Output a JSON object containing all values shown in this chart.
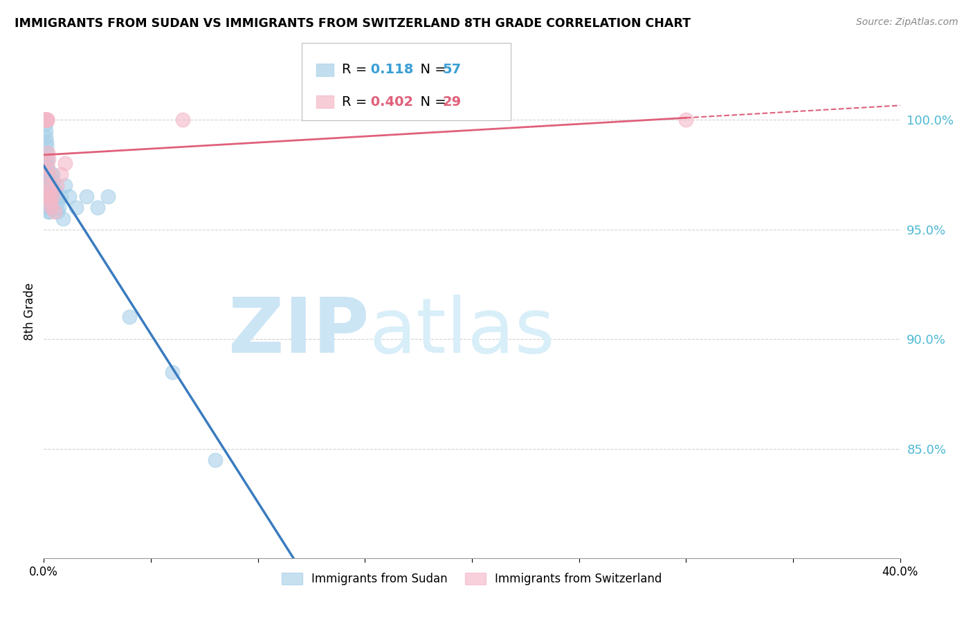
{
  "title": "IMMIGRANTS FROM SUDAN VS IMMIGRANTS FROM SWITZERLAND 8TH GRADE CORRELATION CHART",
  "source": "Source: ZipAtlas.com",
  "ylabel": "8th Grade",
  "x_range": [
    0.0,
    40.0
  ],
  "y_range": [
    80.0,
    102.5
  ],
  "sudan_R": 0.118,
  "sudan_N": 57,
  "swiss_R": 0.402,
  "swiss_N": 29,
  "sudan_color": "#a8d0e8",
  "swiss_color": "#f4b8c8",
  "sudan_line_color": "#3a7bbf",
  "swiss_line_color": "#e0607a",
  "sudan_points_x": [
    0.05,
    0.06,
    0.07,
    0.08,
    0.09,
    0.1,
    0.1,
    0.12,
    0.12,
    0.13,
    0.14,
    0.15,
    0.15,
    0.16,
    0.17,
    0.18,
    0.18,
    0.19,
    0.2,
    0.2,
    0.21,
    0.22,
    0.22,
    0.23,
    0.24,
    0.25,
    0.25,
    0.26,
    0.27,
    0.28,
    0.28,
    0.29,
    0.3,
    0.3,
    0.31,
    0.32,
    0.33,
    0.34,
    0.35,
    0.4,
    0.45,
    0.5,
    0.55,
    0.6,
    0.65,
    0.7,
    0.8,
    0.9,
    1.0,
    1.2,
    1.5,
    2.0,
    2.5,
    3.0,
    4.0,
    6.0,
    8.0
  ],
  "sudan_points_y": [
    100.0,
    100.0,
    100.0,
    100.0,
    99.8,
    99.5,
    99.2,
    99.0,
    98.8,
    98.5,
    98.2,
    98.0,
    97.8,
    97.5,
    97.2,
    97.0,
    96.8,
    96.5,
    96.3,
    96.0,
    95.8,
    97.5,
    97.0,
    96.8,
    96.5,
    96.2,
    96.0,
    95.8,
    97.2,
    97.0,
    96.8,
    96.5,
    97.5,
    97.0,
    96.8,
    96.5,
    97.2,
    97.0,
    96.8,
    97.5,
    97.2,
    96.8,
    96.5,
    96.2,
    95.8,
    96.0,
    96.5,
    95.5,
    97.0,
    96.5,
    96.0,
    96.5,
    96.0,
    96.5,
    91.0,
    88.5,
    84.5
  ],
  "swiss_points_x": [
    0.05,
    0.06,
    0.07,
    0.08,
    0.09,
    0.1,
    0.11,
    0.12,
    0.13,
    0.14,
    0.15,
    0.16,
    0.17,
    0.18,
    0.19,
    0.2,
    0.22,
    0.24,
    0.26,
    0.28,
    0.3,
    0.35,
    0.4,
    0.5,
    0.6,
    0.8,
    1.0,
    6.5,
    30.0
  ],
  "swiss_points_y": [
    100.0,
    100.0,
    100.0,
    100.0,
    100.0,
    100.0,
    100.0,
    100.0,
    100.0,
    100.0,
    100.0,
    100.0,
    98.5,
    97.5,
    96.5,
    97.8,
    98.2,
    97.0,
    96.8,
    96.5,
    96.2,
    96.0,
    96.5,
    95.8,
    97.0,
    97.5,
    98.0,
    100.0,
    100.0
  ],
  "watermark_zip": "ZIP",
  "watermark_atlas": "atlas",
  "watermark_color": "#cce5f5"
}
